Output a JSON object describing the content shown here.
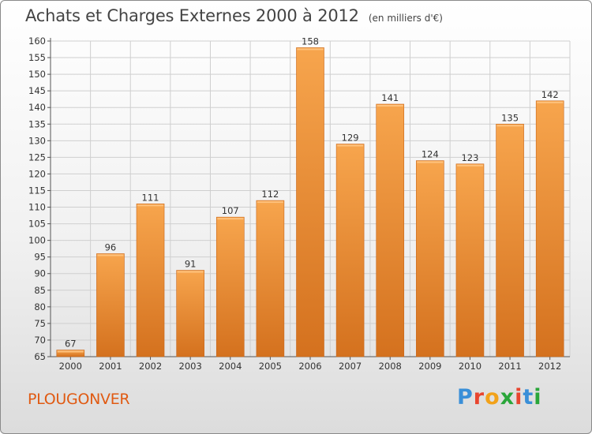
{
  "header": {
    "title": "Achats et Charges Externes 2000 à 2012",
    "unit": "(en milliers d'€)"
  },
  "footer": {
    "town": "PLOUGONVER",
    "logo_text": "Proxiti",
    "logo_colors": [
      "#3a8fd8",
      "#e8452f",
      "#f2a21a",
      "#2aa63a",
      "#e8452f",
      "#3a8fd8",
      "#2aa63a"
    ]
  },
  "colors": {
    "bar_light": "#f7a54d",
    "bar_dark": "#d4711e",
    "grid": "#cfcfcf",
    "town": "#e05a12"
  },
  "chart_data": {
    "type": "bar",
    "categories": [
      "2000",
      "2001",
      "2002",
      "2003",
      "2004",
      "2005",
      "2006",
      "2007",
      "2008",
      "2009",
      "2010",
      "2011",
      "2012"
    ],
    "values": [
      67,
      96,
      111,
      91,
      107,
      112,
      158,
      129,
      141,
      124,
      123,
      135,
      142
    ],
    "data_labels": [
      "67",
      "96",
      "111",
      "91",
      "107",
      "112",
      "158",
      "129",
      "141",
      "124",
      "123",
      "135",
      "142"
    ],
    "ylim": [
      65,
      160
    ],
    "yticks": [
      "65",
      "70",
      "75",
      "80",
      "85",
      "90",
      "95",
      "100",
      "105",
      "110",
      "115",
      "120",
      "125",
      "130",
      "135",
      "140",
      "145",
      "150",
      "155",
      "160"
    ],
    "grid": true,
    "title": "Achats et Charges Externes 2000 à 2012",
    "xlabel": "",
    "ylabel": ""
  }
}
